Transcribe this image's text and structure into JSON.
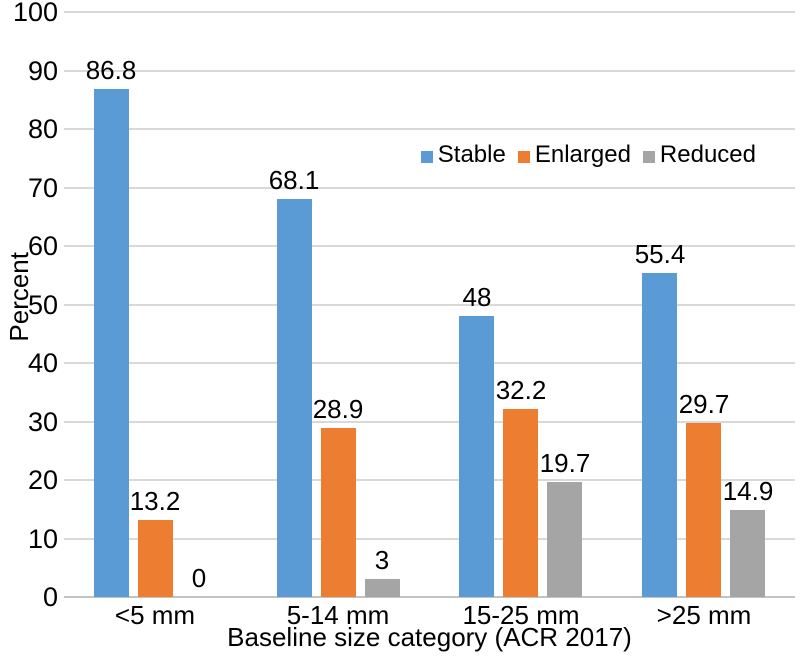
{
  "chart_data": {
    "type": "bar",
    "title": "",
    "xlabel": "Baseline size category (ACR 2017)",
    "ylabel": "Percent",
    "categories": [
      "<5 mm",
      "5-14 mm",
      "15-25 mm",
      ">25 mm"
    ],
    "series": [
      {
        "name": "Stable",
        "color": "#5B9BD5",
        "values": [
          86.8,
          68.1,
          48,
          55.4
        ]
      },
      {
        "name": "Enlarged",
        "color": "#ED7D31",
        "values": [
          13.2,
          28.9,
          32.2,
          29.7
        ]
      },
      {
        "name": "Reduced",
        "color": "#A5A5A5",
        "values": [
          0,
          3,
          19.7,
          14.9
        ]
      }
    ],
    "data_labels": true,
    "ylim": [
      0,
      100
    ],
    "yticks": [
      0,
      10,
      20,
      30,
      40,
      50,
      60,
      70,
      80,
      90,
      100
    ],
    "grid": true,
    "gridline_color": "#d9d9d9",
    "legend_position": "inside-top-right",
    "background_color": "#ffffff"
  }
}
